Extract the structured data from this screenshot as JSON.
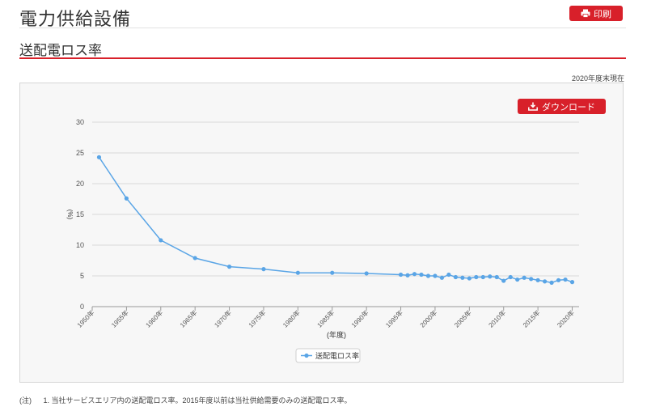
{
  "header": {
    "title": "電力供給設備",
    "print_label": "印刷"
  },
  "section": {
    "title": "送配電ロス率",
    "as_of": "2020年度末現在"
  },
  "toolbar": {
    "download_label": "ダウンロード"
  },
  "icons": {
    "print": "printer-icon",
    "download": "download-icon"
  },
  "colors": {
    "accent": "#d8202a",
    "series": "#5aa5e6"
  },
  "footnote": {
    "mark": "(注)",
    "text": "1. 当社サービスエリア内の送配電ロス率。2015年度以前は当社供給需要のみの送配電ロス率。"
  },
  "chart_data": {
    "type": "line",
    "title": "",
    "xlabel": "(年度)",
    "ylabel": "(%)",
    "ylim": [
      0,
      30
    ],
    "yticks": [
      0,
      5,
      10,
      15,
      20,
      25,
      30
    ],
    "xlim": [
      1950,
      2021
    ],
    "xticks": [
      "1950年",
      "1955年",
      "1960年",
      "1965年",
      "1970年",
      "1975年",
      "1980年",
      "1985年",
      "1990年",
      "1995年",
      "2000年",
      "2005年",
      "2010年",
      "2015年",
      "2020年"
    ],
    "grid": true,
    "legend_position": "bottom",
    "series": [
      {
        "name": "送配電ロス率",
        "x": [
          1951,
          1955,
          1960,
          1965,
          1970,
          1975,
          1980,
          1985,
          1990,
          1995,
          1996,
          1997,
          1998,
          1999,
          2000,
          2001,
          2002,
          2003,
          2004,
          2005,
          2006,
          2007,
          2008,
          2009,
          2010,
          2011,
          2012,
          2013,
          2014,
          2015,
          2016,
          2017,
          2018,
          2019,
          2020
        ],
        "values": [
          24.3,
          17.6,
          10.8,
          7.9,
          6.5,
          6.1,
          5.5,
          5.5,
          5.4,
          5.2,
          5.1,
          5.3,
          5.2,
          5.0,
          5.0,
          4.7,
          5.2,
          4.8,
          4.7,
          4.6,
          4.8,
          4.8,
          4.9,
          4.8,
          4.2,
          4.8,
          4.4,
          4.7,
          4.5,
          4.3,
          4.1,
          3.9,
          4.3,
          4.4,
          4.0
        ]
      }
    ]
  }
}
